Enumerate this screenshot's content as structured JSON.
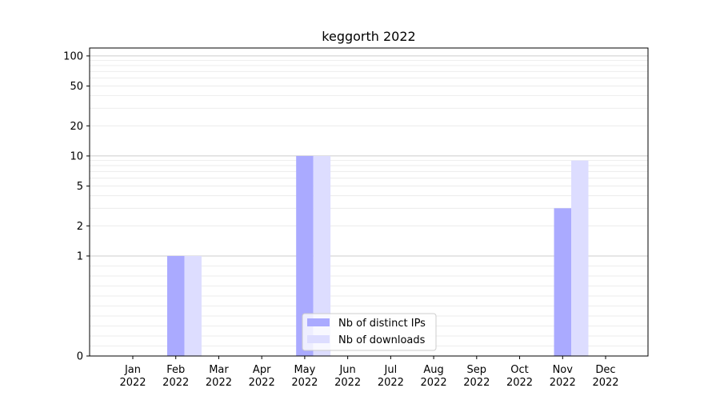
{
  "chart_data": {
    "type": "bar",
    "title": "keggorth 2022",
    "xlabel": "",
    "ylabel": "",
    "yscale": "symlog",
    "ylim": [
      0,
      120
    ],
    "yticks": [
      0,
      1,
      2,
      5,
      10,
      20,
      50,
      100
    ],
    "categories": [
      {
        "month": "Jan",
        "year": "2022"
      },
      {
        "month": "Feb",
        "year": "2022"
      },
      {
        "month": "Mar",
        "year": "2022"
      },
      {
        "month": "Apr",
        "year": "2022"
      },
      {
        "month": "May",
        "year": "2022"
      },
      {
        "month": "Jun",
        "year": "2022"
      },
      {
        "month": "Jul",
        "year": "2022"
      },
      {
        "month": "Aug",
        "year": "2022"
      },
      {
        "month": "Sep",
        "year": "2022"
      },
      {
        "month": "Oct",
        "year": "2022"
      },
      {
        "month": "Nov",
        "year": "2022"
      },
      {
        "month": "Dec",
        "year": "2022"
      }
    ],
    "series": [
      {
        "name": "Nb of distinct IPs",
        "color": "#aaaaff",
        "values": [
          0,
          1,
          0,
          0,
          10,
          0,
          0,
          0,
          0,
          0,
          3,
          0
        ]
      },
      {
        "name": "Nb of downloads",
        "color": "#ddddff",
        "values": [
          0,
          1,
          0,
          0,
          10,
          0,
          0,
          0,
          0,
          0,
          9,
          0
        ]
      }
    ],
    "grid": true,
    "legend_position": "bottom-center"
  }
}
